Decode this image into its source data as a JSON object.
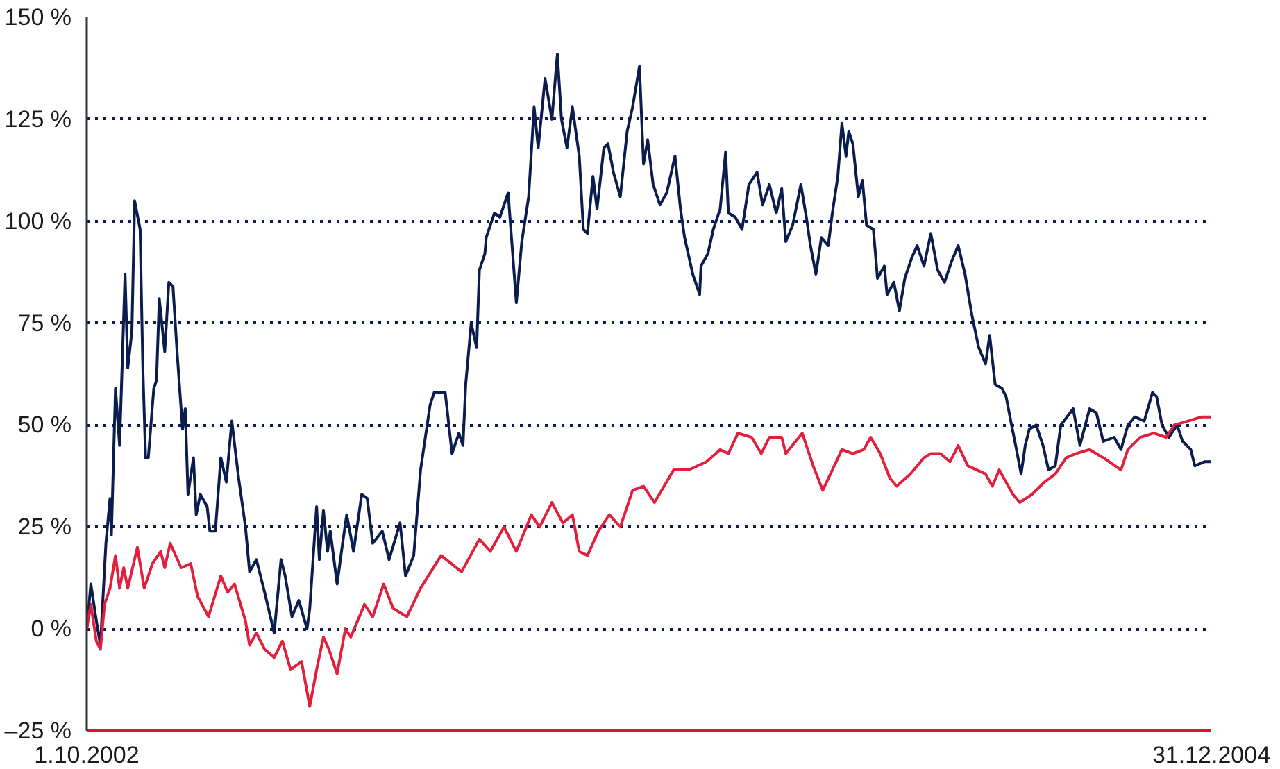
{
  "chart_data": {
    "type": "line",
    "x": [
      "2002-10-01",
      "2002-10-04",
      "2002-10-08",
      "2002-10-11",
      "2002-10-15",
      "2002-10-18",
      "2002-10-19",
      "2002-10-22",
      "2002-10-25",
      "2002-10-29",
      "2002-10-31",
      "2002-11-03",
      "2002-11-05",
      "2002-11-09",
      "2002-11-11",
      "2002-11-13",
      "2002-11-15",
      "2002-11-19",
      "2002-11-21",
      "2002-11-23",
      "2002-11-27",
      "2002-11-30",
      "2002-12-03",
      "2002-12-06",
      "2002-12-10",
      "2002-12-12",
      "2002-12-14",
      "2002-12-18",
      "2002-12-20",
      "2002-12-23",
      "2002-12-28",
      "2002-12-30",
      "2003-01-03",
      "2003-01-07",
      "2003-01-11",
      "2003-01-15",
      "2003-01-20",
      "2003-01-25",
      "2003-01-28",
      "2003-02-02",
      "2003-02-08",
      "2003-02-15",
      "2003-02-20",
      "2003-02-23",
      "2003-02-28",
      "2003-03-05",
      "2003-03-11",
      "2003-03-13",
      "2003-03-18",
      "2003-03-20",
      "2003-03-23",
      "2003-03-26",
      "2003-03-28",
      "2003-04-02",
      "2003-04-06",
      "2003-04-09",
      "2003-04-14",
      "2003-04-20",
      "2003-04-24",
      "2003-04-28",
      "2003-05-05",
      "2003-05-10",
      "2003-05-18",
      "2003-05-22",
      "2003-05-28",
      "2003-06-02",
      "2003-06-09",
      "2003-06-12",
      "2003-06-20",
      "2003-06-25",
      "2003-06-30",
      "2003-07-03",
      "2003-07-05",
      "2003-07-09",
      "2003-07-13",
      "2003-07-15",
      "2003-07-19",
      "2003-07-20",
      "2003-07-26",
      "2003-07-30",
      "2003-08-05",
      "2003-08-11",
      "2003-08-15",
      "2003-08-20",
      "2003-08-24",
      "2003-08-27",
      "2003-09-01",
      "2003-09-06",
      "2003-09-10",
      "2003-09-13",
      "2003-09-17",
      "2003-09-21",
      "2003-09-26",
      "2003-09-29",
      "2003-10-02",
      "2003-10-06",
      "2003-10-09",
      "2003-10-14",
      "2003-10-17",
      "2003-10-21",
      "2003-10-26",
      "2003-10-31",
      "2003-11-04",
      "2003-11-09",
      "2003-11-12",
      "2003-11-15",
      "2003-11-19",
      "2003-11-24",
      "2003-11-29",
      "2003-12-05",
      "2003-12-09",
      "2003-12-12",
      "2003-12-18",
      "2003-12-23",
      "2003-12-24",
      "2003-12-29",
      "2004-01-02",
      "2004-01-07",
      "2004-01-11",
      "2004-01-13",
      "2004-01-18",
      "2004-01-23",
      "2004-01-28",
      "2004-02-03",
      "2004-02-07",
      "2004-02-12",
      "2004-02-17",
      "2004-02-21",
      "2004-02-24",
      "2004-02-29",
      "2004-03-06",
      "2004-03-10",
      "2004-03-13",
      "2004-03-17",
      "2004-03-21",
      "2004-03-26",
      "2004-03-29",
      "2004-04-02",
      "2004-04-05",
      "2004-04-08",
      "2004-04-10",
      "2004-04-13",
      "2004-04-17",
      "2004-04-20",
      "2004-04-23",
      "2004-04-28",
      "2004-05-01",
      "2004-05-06",
      "2004-05-08",
      "2004-05-13",
      "2004-05-17",
      "2004-05-21",
      "2004-05-26",
      "2004-05-30",
      "2004-06-04",
      "2004-06-09",
      "2004-06-14",
      "2004-06-19",
      "2004-06-24",
      "2004-06-29",
      "2004-07-04",
      "2004-07-09",
      "2004-07-14",
      "2004-07-19",
      "2004-07-22",
      "2004-07-26",
      "2004-07-31",
      "2004-08-03",
      "2004-08-07",
      "2004-08-10",
      "2004-08-14",
      "2004-08-17",
      "2004-08-20",
      "2004-08-25",
      "2004-08-30",
      "2004-09-03",
      "2004-09-08",
      "2004-09-12",
      "2004-09-21",
      "2004-09-26",
      "2004-10-03",
      "2004-10-08",
      "2004-10-13",
      "2004-10-21",
      "2004-10-26",
      "2004-10-31",
      "2004-11-05",
      "2004-11-12",
      "2004-11-18",
      "2004-11-21",
      "2004-11-25",
      "2004-11-30",
      "2004-12-06",
      "2004-12-10",
      "2004-12-16",
      "2004-12-19",
      "2004-12-26",
      "2004-12-31"
    ],
    "series": [
      {
        "color": "#0b1d4e",
        "values": [
          0,
          11,
          2,
          -4,
          21,
          32,
          23,
          59,
          45,
          87,
          64,
          73,
          105,
          98,
          64,
          42,
          42,
          59,
          61,
          81,
          68,
          85,
          84,
          68,
          49,
          54,
          33,
          42,
          28,
          33,
          30,
          24,
          24,
          42,
          36,
          51,
          37,
          25,
          14,
          17,
          9,
          -1,
          17,
          13,
          3,
          7,
          0,
          5,
          30,
          17,
          29,
          19,
          24,
          11,
          21,
          28,
          19,
          33,
          32,
          21,
          24,
          17,
          26,
          13,
          18,
          39,
          55,
          58,
          58,
          43,
          48,
          45,
          60,
          75,
          69,
          88,
          92,
          96,
          102,
          101,
          107,
          80,
          95,
          106,
          128,
          118,
          135,
          125,
          141,
          125,
          118,
          128,
          116,
          98,
          97,
          111,
          103,
          118,
          119,
          112,
          106,
          122,
          128,
          138,
          114,
          120,
          109,
          104,
          107,
          116,
          103,
          96,
          87,
          82,
          89,
          92,
          98,
          103,
          117,
          102,
          101,
          98,
          109,
          112,
          104,
          109,
          102,
          108,
          95,
          99,
          109,
          101,
          94,
          87,
          96,
          94,
          102,
          111,
          124,
          116,
          122,
          119,
          106,
          110,
          99,
          98,
          86,
          89,
          82,
          85,
          78,
          86,
          91,
          94,
          89,
          97,
          88,
          85,
          90,
          94,
          87,
          77,
          69,
          65,
          72,
          60,
          59,
          57,
          50,
          45,
          38,
          45,
          49,
          50,
          45,
          39,
          40,
          50,
          54,
          45,
          54,
          53,
          46,
          47,
          44,
          50,
          52,
          51,
          58,
          57,
          50,
          47,
          50,
          46,
          44,
          40,
          41,
          41
        ]
      },
      {
        "color": "#e0203c",
        "x": [
          "2002-10-01",
          "2002-10-04",
          "2002-10-08",
          "2002-10-11",
          "2002-10-14",
          "2002-10-18",
          "2002-10-22",
          "2002-10-25",
          "2002-10-28",
          "2002-10-31",
          "2002-11-07",
          "2002-11-12",
          "2002-11-18",
          "2002-11-24",
          "2002-11-27",
          "2002-12-01",
          "2002-12-09",
          "2002-12-16",
          "2002-12-21",
          "2002-12-29",
          "2003-01-07",
          "2003-01-12",
          "2003-01-17",
          "2003-01-25",
          "2003-01-28",
          "2003-02-02",
          "2003-02-08",
          "2003-02-15",
          "2003-02-21",
          "2003-02-27",
          "2003-03-07",
          "2003-03-13",
          "2003-03-18",
          "2003-03-23",
          "2003-03-27",
          "2003-04-02",
          "2003-04-08",
          "2003-04-12",
          "2003-04-22",
          "2003-04-28",
          "2003-05-06",
          "2003-05-13",
          "2003-05-23",
          "2003-06-02",
          "2003-06-17",
          "2003-07-02",
          "2003-07-15",
          "2003-07-23",
          "2003-08-02",
          "2003-08-11",
          "2003-08-22",
          "2003-08-28",
          "2003-09-06",
          "2003-09-14",
          "2003-09-21",
          "2003-09-26",
          "2003-10-02",
          "2003-10-10",
          "2003-10-18",
          "2003-10-26",
          "2003-11-04",
          "2003-11-12",
          "2003-11-20",
          "2003-12-04",
          "2003-12-15",
          "2003-12-28",
          "2004-01-07",
          "2004-01-13",
          "2004-01-20",
          "2004-01-30",
          "2004-02-06",
          "2004-02-12",
          "2004-02-21",
          "2004-02-24",
          "2004-03-07",
          "2004-03-15",
          "2004-03-22",
          "2004-03-29",
          "2004-04-05",
          "2004-04-13",
          "2004-04-21",
          "2004-04-26",
          "2004-05-03",
          "2004-05-10",
          "2004-05-15",
          "2004-05-25",
          "2004-06-04",
          "2004-06-09",
          "2004-06-16",
          "2004-06-23",
          "2004-06-29",
          "2004-07-06",
          "2004-07-19",
          "2004-07-24",
          "2004-07-29",
          "2004-08-08",
          "2004-08-13",
          "2004-08-22",
          "2004-08-31",
          "2004-09-08",
          "2004-09-16",
          "2004-09-23",
          "2004-10-03",
          "2004-10-13",
          "2004-10-26",
          "2004-10-31",
          "2004-11-09",
          "2004-11-19",
          "2004-11-28",
          "2004-12-04",
          "2004-12-14",
          "2004-12-24",
          "2004-12-31"
        ],
        "values": [
          0,
          6,
          -3,
          -5,
          6,
          10,
          18,
          10,
          15,
          10,
          20,
          10,
          16,
          19,
          15,
          21,
          15,
          16,
          8,
          3,
          13,
          9,
          11,
          2,
          -4,
          -1,
          -5,
          -7,
          -3,
          -10,
          -8,
          -19,
          -10,
          -2,
          -5,
          -11,
          0,
          -2,
          6,
          3,
          11,
          5,
          3,
          10,
          18,
          14,
          22,
          19,
          25,
          19,
          28,
          25,
          31,
          26,
          28,
          19,
          18,
          24,
          28,
          25,
          34,
          35,
          31,
          39,
          39,
          41,
          44,
          43,
          48,
          47,
          43,
          47,
          47,
          43,
          48,
          40,
          34,
          39,
          44,
          43,
          44,
          47,
          43,
          37,
          35,
          38,
          42,
          43,
          43,
          41,
          45,
          40,
          38,
          35,
          39,
          33,
          31,
          33,
          36,
          38,
          42,
          43,
          44,
          42,
          39,
          44,
          47,
          48,
          47,
          50,
          51,
          52,
          52
        ]
      }
    ],
    "xlim": [
      "2002-10-01",
      "2004-12-31"
    ],
    "xticks": [
      {
        "value": "2002-10-01",
        "label": "1.10.2002"
      },
      {
        "value": "2004-12-31",
        "label": "31.12.2004"
      }
    ],
    "ylim": [
      -25,
      150
    ],
    "yticks": [
      {
        "value": -25,
        "label": "–25 %"
      },
      {
        "value": 0,
        "label": "0 %"
      },
      {
        "value": 25,
        "label": "25 %"
      },
      {
        "value": 50,
        "label": "50 %"
      },
      {
        "value": 75,
        "label": "75 %"
      },
      {
        "value": 100,
        "label": "100 %"
      },
      {
        "value": 125,
        "label": "125 %"
      },
      {
        "value": 150,
        "label": "150 %"
      }
    ],
    "grid": "y",
    "marker": "none",
    "line_style": "solid"
  }
}
